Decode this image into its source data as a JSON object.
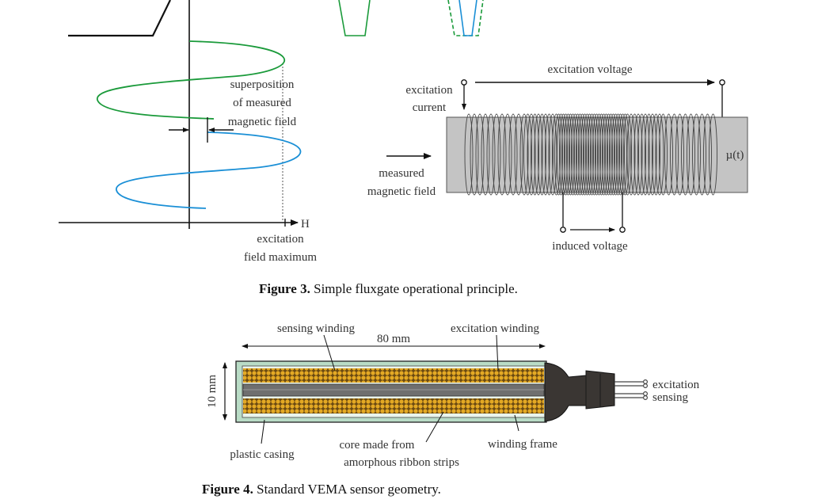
{
  "figure3": {
    "labels": {
      "superposition_1": "superposition",
      "superposition_2": "of measured",
      "superposition_3": "magnetic field",
      "axis_h": "H",
      "excitation_max_1": "excitation",
      "excitation_max_2": "field maximum",
      "excitation_voltage": "excitation voltage",
      "excitation_current_1": "excitation",
      "excitation_current_2": "current",
      "measured_field_1": "measured",
      "measured_field_2": "magnetic field",
      "mu": "µ(t)",
      "induced_voltage": "induced voltage"
    },
    "caption_label": "Figure 3.",
    "caption_text": " Simple fluxgate operational principle."
  },
  "figure4": {
    "labels": {
      "sensing_winding": "sensing winding",
      "excitation_winding": "excitation winding",
      "length": "80 mm",
      "height": "10 mm",
      "excitation": "excitation",
      "sensing": "sensing",
      "plastic_casing": "plastic casing",
      "core_1": "core made from",
      "core_2": "amorphous ribbon strips",
      "winding_frame": "winding frame"
    },
    "caption_label": "Figure 4.",
    "caption_text": " Standard VEMA sensor geometry."
  },
  "colors": {
    "green_curve": "#1a9a3a",
    "blue_curve": "#1a8fd6",
    "core_gray": "#c4c4c4",
    "casing_green": "#b9dcc6",
    "winding_gold": "#d49a1c",
    "cable_dark": "#3a3633"
  }
}
